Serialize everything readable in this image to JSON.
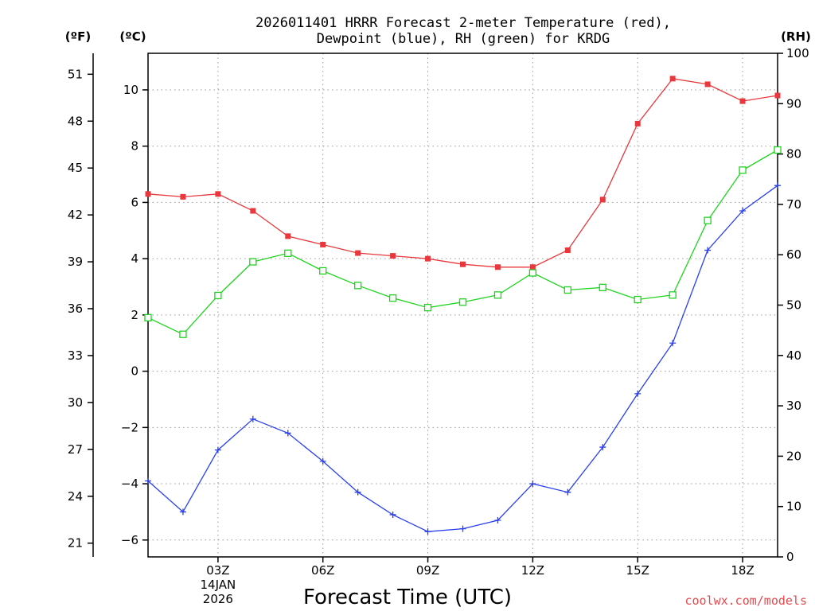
{
  "chart_data": {
    "type": "line",
    "title_line1": "2026011401 HRRR Forecast 2-meter Temperature (red),",
    "title_line2": "Dewpoint (blue), RH (green) for KRDG",
    "xlabel": "Forecast Time (UTC)",
    "x_hours": [
      1,
      2,
      3,
      4,
      5,
      6,
      7,
      8,
      9,
      10,
      11,
      12,
      13,
      14,
      15,
      16,
      17,
      18,
      19
    ],
    "x_ticks": [
      {
        "hour": 3,
        "label": "03Z",
        "sublabel1": "14JAN",
        "sublabel2": "2026"
      },
      {
        "hour": 6,
        "label": "06Z"
      },
      {
        "hour": 9,
        "label": "09Z"
      },
      {
        "hour": 12,
        "label": "12Z"
      },
      {
        "hour": 15,
        "label": "15Z"
      },
      {
        "hour": 18,
        "label": "18Z"
      }
    ],
    "celsius_axis": {
      "unit_label": "(ºC)",
      "range": [
        -6.6,
        11.3
      ],
      "ticks": [
        -6,
        -4,
        -2,
        0,
        2,
        4,
        6,
        8,
        10
      ]
    },
    "fahrenheit_axis": {
      "unit_label": "(ºF)",
      "ticks": [
        21,
        24,
        27,
        30,
        33,
        36,
        39,
        42,
        45,
        48,
        51
      ]
    },
    "rh_axis": {
      "unit_label": "(RH)",
      "range": [
        0,
        100
      ],
      "ticks": [
        0,
        10,
        20,
        30,
        40,
        50,
        60,
        70,
        80,
        90,
        100
      ]
    },
    "series": [
      {
        "name": "Temperature",
        "units": "C",
        "color": "#e8383d",
        "marker": "filled-square",
        "values": [
          6.3,
          6.2,
          6.3,
          5.7,
          4.8,
          4.5,
          4.2,
          4.1,
          4.0,
          3.8,
          3.7,
          3.7,
          4.3,
          6.1,
          8.8,
          10.4,
          10.2,
          9.6,
          9.8
        ]
      },
      {
        "name": "Dewpoint",
        "units": "C",
        "color": "#2a3ff0",
        "marker": "plus",
        "values": [
          -3.9,
          -5.0,
          -2.8,
          -1.7,
          -2.2,
          -3.2,
          -4.3,
          -5.1,
          -5.7,
          -5.6,
          -5.3,
          -4.0,
          -4.3,
          -2.7,
          -0.8,
          1.0,
          4.3,
          5.7,
          6.6
        ]
      },
      {
        "name": "RH",
        "units": "%",
        "color": "#1fd41f",
        "marker": "open-square",
        "values": [
          47.5,
          44.2,
          51.9,
          58.6,
          60.3,
          56.8,
          53.9,
          51.4,
          49.5,
          50.6,
          52.0,
          56.4,
          53.0,
          53.5,
          51.1,
          52.0,
          66.8,
          76.8,
          80.8
        ]
      }
    ]
  },
  "credit": "coolwx.com/models"
}
